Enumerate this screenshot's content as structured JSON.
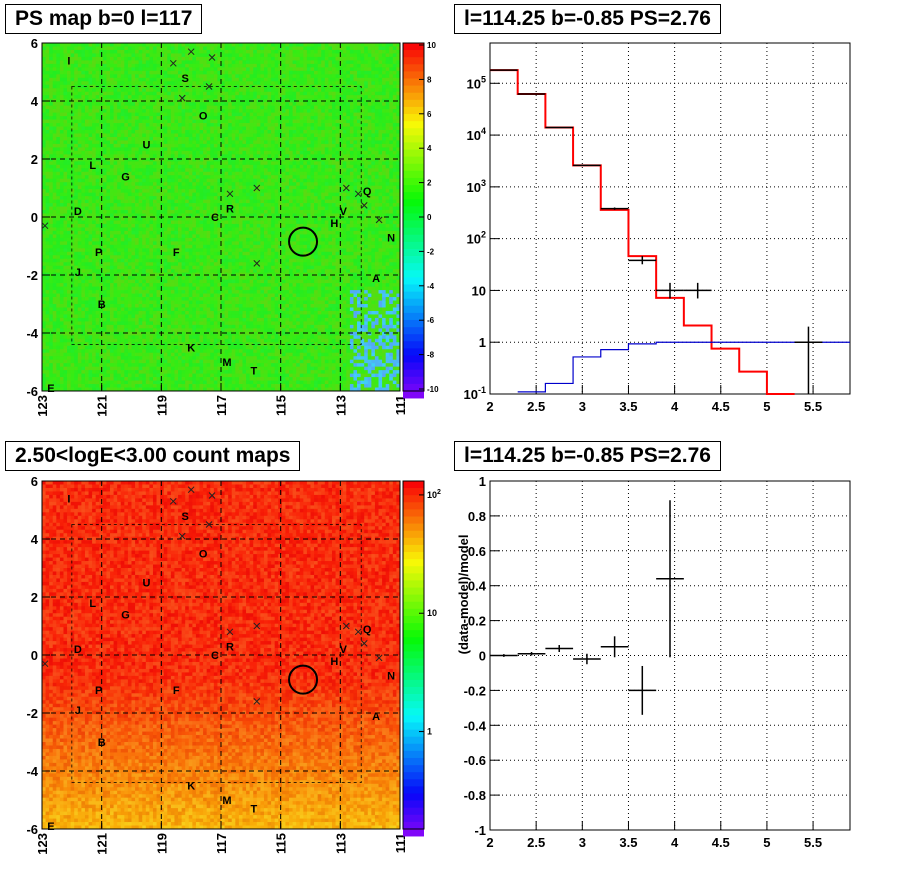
{
  "colors": {
    "data": "#000000",
    "model_total": "#ff0000",
    "model_background": "#0000cc",
    "map_fill": "#22ee22",
    "count_fill": "#ff3311"
  },
  "chart_data": [
    {
      "type": "heatmap",
      "panel": "ps-map",
      "title": "PS map b=0 l=117",
      "xlabel": "",
      "ylabel": "",
      "x_ticks": [
        "123",
        "121",
        "119",
        "117",
        "115",
        "113",
        "111"
      ],
      "y_ticks": [
        "6",
        "4",
        "2",
        "0",
        "-2",
        "-4",
        "-6"
      ],
      "xlim": [
        123,
        111
      ],
      "ylim": [
        -6,
        6
      ],
      "color_scale": "linear",
      "colorbar_ticks": [
        "10",
        "8",
        "6",
        "4",
        "2",
        "0",
        "-2",
        "-4",
        "-6",
        "-8",
        "-10"
      ],
      "colorbar_range": [
        -10,
        10
      ],
      "grid": true
    },
    {
      "type": "line",
      "panel": "spectrum",
      "title": "l=114.25 b=-0.85 PS=2.76",
      "xlabel": "",
      "ylabel": "",
      "x_ticks": [
        "2",
        "2.5",
        "3",
        "3.5",
        "4",
        "4.5",
        "5",
        "5.5"
      ],
      "y_ticks": [
        "10^-1",
        "1",
        "10",
        "10^2",
        "10^3",
        "10^4",
        "10^5"
      ],
      "xlim": [
        2,
        5.9
      ],
      "ylim": [
        0.1,
        600000
      ],
      "y_scale": "log",
      "grid": true,
      "series": [
        {
          "style": "step",
          "color": "#ff0000",
          "bin_edges": [
            2.0,
            2.3,
            2.6,
            2.9,
            3.2,
            3.5,
            3.8,
            4.1,
            4.4,
            4.7,
            5.0,
            5.3
          ],
          "values": [
            180000,
            62000,
            14000,
            2600,
            360,
            46,
            7.2,
            2.1,
            0.75,
            0.27,
            0.09
          ]
        },
        {
          "style": "step",
          "color": "#0000cc",
          "bin_edges": [
            2.3,
            2.6,
            2.9,
            3.2,
            3.5,
            3.8,
            4.1,
            4.4,
            4.7,
            5.0,
            5.3,
            5.9
          ],
          "values": [
            0.11,
            0.16,
            0.52,
            0.72,
            0.93,
            1.0,
            1.0,
            1.0,
            1.0,
            1.0,
            1.0
          ]
        },
        {
          "style": "errorbar",
          "color": "#000000",
          "x": [
            2.15,
            2.45,
            2.75,
            3.05,
            3.35,
            3.65,
            3.95,
            4.25,
            5.45
          ],
          "xerr": 0.15,
          "y": [
            180000,
            62000,
            14000,
            2600,
            380,
            38,
            10,
            10,
            1
          ],
          "y_low": [
            178000,
            61000,
            13800,
            2550,
            360,
            32,
            7,
            7,
            0.1
          ],
          "y_high": [
            182000,
            63000,
            14200,
            2650,
            400,
            46,
            14,
            14,
            2
          ]
        }
      ]
    },
    {
      "type": "heatmap",
      "panel": "count-map",
      "title": "2.50<logE<3.00 count maps",
      "xlabel": "",
      "ylabel": "",
      "x_ticks": [
        "123",
        "121",
        "119",
        "117",
        "115",
        "113",
        "111"
      ],
      "y_ticks": [
        "6",
        "4",
        "2",
        "0",
        "-2",
        "-4",
        "-6"
      ],
      "xlim": [
        123,
        111
      ],
      "ylim": [
        -6,
        6
      ],
      "color_scale": "log",
      "colorbar_ticks": [
        "10^2",
        "10",
        "1"
      ],
      "grid": true
    },
    {
      "type": "scatter",
      "panel": "residual",
      "title": "l=114.25 b=-0.85 PS=2.76",
      "xlabel": "",
      "ylabel": "(data-model)/model",
      "x_ticks": [
        "2",
        "2.5",
        "3",
        "3.5",
        "4",
        "4.5",
        "5",
        "5.5"
      ],
      "y_ticks": [
        "1",
        "0.8",
        "0.6",
        "0.4",
        "0.2",
        "0",
        "-0.2",
        "-0.4",
        "-0.6",
        "-0.8",
        "-1"
      ],
      "xlim": [
        2,
        5.9
      ],
      "ylim": [
        -1,
        1
      ],
      "grid": true,
      "series": [
        {
          "style": "errorbar",
          "color": "#000000",
          "x": [
            2.15,
            2.45,
            2.75,
            3.05,
            3.35,
            3.65,
            3.95
          ],
          "xerr": 0.15,
          "y": [
            0.0,
            0.01,
            0.04,
            -0.02,
            0.05,
            -0.2,
            0.44
          ],
          "yerr": [
            0.008,
            0.01,
            0.02,
            0.03,
            0.06,
            0.14,
            0.45
          ]
        }
      ]
    }
  ],
  "map_labels": [
    "I",
    "S",
    "O",
    "U",
    "L",
    "G",
    "D",
    "C",
    "R",
    "H",
    "V",
    "Q",
    "N",
    "A",
    "P",
    "F",
    "J",
    "B",
    "K",
    "M",
    "T",
    "E"
  ],
  "map_label_coords": [
    {
      "l": 122.1,
      "b": 5.4
    },
    {
      "l": 118.2,
      "b": 4.8
    },
    {
      "l": 117.6,
      "b": 3.5
    },
    {
      "l": 119.5,
      "b": 2.5
    },
    {
      "l": 121.3,
      "b": 1.8
    },
    {
      "l": 120.2,
      "b": 1.4
    },
    {
      "l": 121.8,
      "b": 0.2
    },
    {
      "l": 117.2,
      "b": 0.0
    },
    {
      "l": 116.7,
      "b": 0.3
    },
    {
      "l": 113.2,
      "b": -0.2
    },
    {
      "l": 112.9,
      "b": 0.2
    },
    {
      "l": 112.1,
      "b": 0.9
    },
    {
      "l": 111.3,
      "b": -0.7
    },
    {
      "l": 111.8,
      "b": -2.1
    },
    {
      "l": 121.1,
      "b": -1.2
    },
    {
      "l": 118.5,
      "b": -1.2
    },
    {
      "l": 121.8,
      "b": -1.9
    },
    {
      "l": 121.0,
      "b": -3.0
    },
    {
      "l": 118.0,
      "b": -4.5
    },
    {
      "l": 116.8,
      "b": -5.0
    },
    {
      "l": 115.9,
      "b": -5.3
    },
    {
      "l": 122.7,
      "b": -5.9
    }
  ],
  "map_crosses": [
    {
      "l": 118.6,
      "b": 5.3
    },
    {
      "l": 118.0,
      "b": 5.7
    },
    {
      "l": 117.3,
      "b": 5.5
    },
    {
      "l": 118.3,
      "b": 4.1
    },
    {
      "l": 117.4,
      "b": 4.5
    },
    {
      "l": 116.7,
      "b": 0.8
    },
    {
      "l": 115.8,
      "b": 1.0
    },
    {
      "l": 115.8,
      "b": -1.6
    },
    {
      "l": 112.8,
      "b": 1.0
    },
    {
      "l": 112.4,
      "b": 0.8
    },
    {
      "l": 112.2,
      "b": 0.4
    },
    {
      "l": 111.7,
      "b": -0.1
    },
    {
      "l": 122.9,
      "b": -0.3
    }
  ],
  "map_circle": {
    "l": 114.25,
    "b": -0.85
  }
}
